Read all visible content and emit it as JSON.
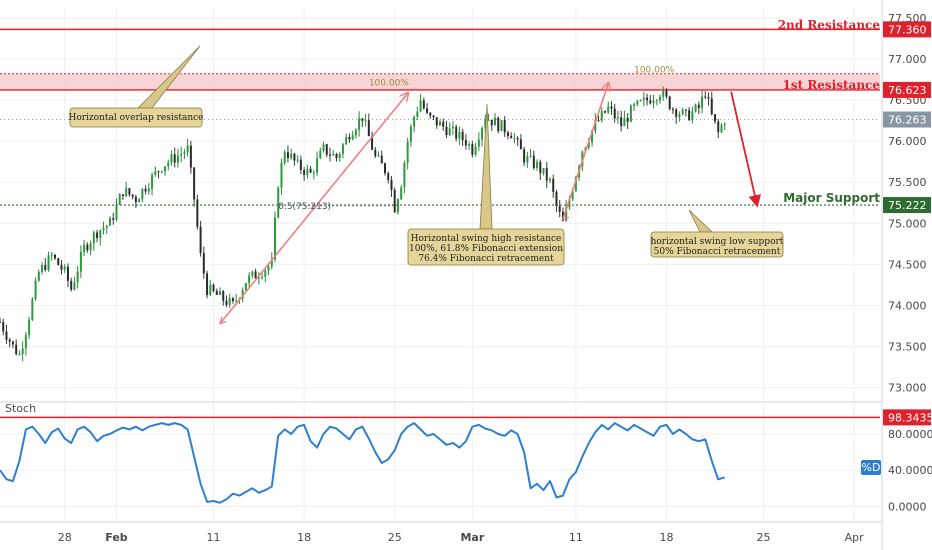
{
  "chart_data": {
    "type": "candlestick",
    "instrument_note": "",
    "price_axis": {
      "ticks": [
        "77.500",
        "77.000",
        "76.500",
        "76.000",
        "75.500",
        "75.000",
        "74.500",
        "74.000",
        "73.500",
        "73.000"
      ],
      "tick_values": [
        77.5,
        77.0,
        76.5,
        76.0,
        75.5,
        75.0,
        74.5,
        74.0,
        73.5,
        73.0
      ],
      "ylim": [
        72.85,
        77.62
      ]
    },
    "time_axis": {
      "labels": [
        "28",
        "Feb",
        "11",
        "18",
        "25",
        "Mar",
        "11",
        "18",
        "25",
        "Apr"
      ],
      "bold_labels": [
        "Feb",
        "Mar"
      ],
      "positions": [
        10,
        18,
        33,
        47,
        61,
        73,
        89,
        103,
        118,
        132
      ],
      "xlim": [
        0,
        136
      ]
    },
    "levels": [
      {
        "name": "2nd Resistance",
        "value": 77.36,
        "tag": "77.360",
        "color": "#e0202a"
      },
      {
        "name": "1st Resistance",
        "value": 76.623,
        "tag": "76.623",
        "color": "#e0202a"
      },
      {
        "name": "Major Support",
        "value": 75.222,
        "tag": "75.222",
        "color": "#2e6b30"
      }
    ],
    "resistance_zone": {
      "low": 76.62,
      "high": 76.82,
      "color": "#f4c7c9"
    },
    "last_price": {
      "value": 76.263,
      "tag": "76.263",
      "color": "#8a96a3"
    },
    "fibonacci": [
      {
        "label": "100.00%",
        "value": 76.64,
        "color": "#a08a3a"
      },
      {
        "label": "100.00%",
        "value": 76.82,
        "color": "#a08a3a"
      },
      {
        "label": "0.5(75.213)",
        "value": 75.213,
        "color": "#4a4a4a"
      }
    ],
    "annotations": [
      {
        "text": [
          "Horizontal overlap resistance"
        ]
      },
      {
        "text": [
          "Horizontal swing high resistance",
          "100%, 61.8% Fibonacci extension",
          "76.4% Fibonacci retracement"
        ]
      },
      {
        "text": [
          "horizontal swing low support",
          "50% Fibonacci retracement"
        ]
      }
    ],
    "price_series": [
      {
        "x": 0,
        "close": 73.8
      },
      {
        "x": 2,
        "close": 73.5
      },
      {
        "x": 3,
        "close": 73.4
      },
      {
        "x": 4,
        "close": 73.7
      },
      {
        "x": 6,
        "close": 74.4
      },
      {
        "x": 8,
        "close": 74.6
      },
      {
        "x": 10,
        "close": 74.4
      },
      {
        "x": 11,
        "close": 74.2
      },
      {
        "x": 13,
        "close": 74.7
      },
      {
        "x": 15,
        "close": 74.9
      },
      {
        "x": 17,
        "close": 75.0
      },
      {
        "x": 19,
        "close": 75.4
      },
      {
        "x": 21,
        "close": 75.3
      },
      {
        "x": 23,
        "close": 75.5
      },
      {
        "x": 25,
        "close": 75.7
      },
      {
        "x": 27,
        "close": 75.8
      },
      {
        "x": 29,
        "close": 75.9
      },
      {
        "x": 30,
        "close": 75.3
      },
      {
        "x": 31,
        "close": 74.6
      },
      {
        "x": 32,
        "close": 74.2
      },
      {
        "x": 34,
        "close": 74.1
      },
      {
        "x": 36,
        "close": 74.0
      },
      {
        "x": 38,
        "close": 74.3
      },
      {
        "x": 40,
        "close": 74.4
      },
      {
        "x": 42,
        "close": 74.5
      },
      {
        "x": 43,
        "close": 75.5
      },
      {
        "x": 44,
        "close": 75.9
      },
      {
        "x": 46,
        "close": 75.7
      },
      {
        "x": 48,
        "close": 75.6
      },
      {
        "x": 50,
        "close": 75.9
      },
      {
        "x": 52,
        "close": 75.8
      },
      {
        "x": 54,
        "close": 76.1
      },
      {
        "x": 56,
        "close": 76.3
      },
      {
        "x": 58,
        "close": 75.8
      },
      {
        "x": 60,
        "close": 75.6
      },
      {
        "x": 61,
        "close": 75.2
      },
      {
        "x": 62,
        "close": 75.5
      },
      {
        "x": 63,
        "close": 76.0
      },
      {
        "x": 64,
        "close": 76.3
      },
      {
        "x": 65,
        "close": 76.5
      },
      {
        "x": 66,
        "close": 76.3
      },
      {
        "x": 68,
        "close": 76.2
      },
      {
        "x": 70,
        "close": 76.1
      },
      {
        "x": 72,
        "close": 76.0
      },
      {
        "x": 73,
        "close": 75.9
      },
      {
        "x": 75,
        "close": 76.3
      },
      {
        "x": 77,
        "close": 76.2
      },
      {
        "x": 79,
        "close": 76.1
      },
      {
        "x": 81,
        "close": 75.8
      },
      {
        "x": 83,
        "close": 75.7
      },
      {
        "x": 85,
        "close": 75.5
      },
      {
        "x": 86,
        "close": 75.2
      },
      {
        "x": 87,
        "close": 75.0
      },
      {
        "x": 88,
        "close": 75.3
      },
      {
        "x": 89,
        "close": 75.6
      },
      {
        "x": 90,
        "close": 75.9
      },
      {
        "x": 92,
        "close": 76.2
      },
      {
        "x": 94,
        "close": 76.4
      },
      {
        "x": 96,
        "close": 76.2
      },
      {
        "x": 98,
        "close": 76.4
      },
      {
        "x": 100,
        "close": 76.5
      },
      {
        "x": 102,
        "close": 76.6
      },
      {
        "x": 104,
        "close": 76.4
      },
      {
        "x": 106,
        "close": 76.3
      },
      {
        "x": 108,
        "close": 76.4
      },
      {
        "x": 109,
        "close": 76.6
      },
      {
        "x": 110,
        "close": 76.3
      },
      {
        "x": 111,
        "close": 76.1
      },
      {
        "x": 112,
        "close": 76.263
      }
    ],
    "projection": [
      {
        "x": 113,
        "value": 76.6
      },
      {
        "x": 117,
        "value": 75.22
      }
    ],
    "fib_swings": [
      {
        "from": {
          "x": 34,
          "value": 73.78
        },
        "to": {
          "x": 63,
          "value": 76.58
        }
      },
      {
        "from": {
          "x": 87,
          "value": 75.05
        },
        "to": {
          "x": 94,
          "value": 76.7
        }
      }
    ],
    "stochastic": {
      "label": "Stoch",
      "badge": "%D",
      "ticks": [
        "80.0000",
        "40.0000",
        "0.0000"
      ],
      "tick_values": [
        80,
        40,
        0
      ],
      "ylim": [
        -15,
        112
      ],
      "overbought": {
        "value": 98.3435,
        "tag": "98.3435",
        "color": "#e0202a"
      },
      "values": [
        {
          "x": 0,
          "v": 40
        },
        {
          "x": 1,
          "v": 30
        },
        {
          "x": 2,
          "v": 28
        },
        {
          "x": 3,
          "v": 50
        },
        {
          "x": 4,
          "v": 85
        },
        {
          "x": 5,
          "v": 88
        },
        {
          "x": 6,
          "v": 80
        },
        {
          "x": 7,
          "v": 70
        },
        {
          "x": 8,
          "v": 82
        },
        {
          "x": 9,
          "v": 86
        },
        {
          "x": 10,
          "v": 75
        },
        {
          "x": 11,
          "v": 70
        },
        {
          "x": 12,
          "v": 85
        },
        {
          "x": 13,
          "v": 88
        },
        {
          "x": 14,
          "v": 82
        },
        {
          "x": 15,
          "v": 72
        },
        {
          "x": 16,
          "v": 78
        },
        {
          "x": 17,
          "v": 80
        },
        {
          "x": 18,
          "v": 84
        },
        {
          "x": 19,
          "v": 87
        },
        {
          "x": 20,
          "v": 85
        },
        {
          "x": 21,
          "v": 88
        },
        {
          "x": 22,
          "v": 84
        },
        {
          "x": 23,
          "v": 88
        },
        {
          "x": 24,
          "v": 90
        },
        {
          "x": 25,
          "v": 92
        },
        {
          "x": 26,
          "v": 90
        },
        {
          "x": 27,
          "v": 92
        },
        {
          "x": 28,
          "v": 90
        },
        {
          "x": 29,
          "v": 85
        },
        {
          "x": 30,
          "v": 55
        },
        {
          "x": 31,
          "v": 25
        },
        {
          "x": 32,
          "v": 5
        },
        {
          "x": 33,
          "v": 6
        },
        {
          "x": 34,
          "v": 4
        },
        {
          "x": 35,
          "v": 8
        },
        {
          "x": 36,
          "v": 14
        },
        {
          "x": 37,
          "v": 12
        },
        {
          "x": 38,
          "v": 16
        },
        {
          "x": 39,
          "v": 20
        },
        {
          "x": 40,
          "v": 15
        },
        {
          "x": 41,
          "v": 18
        },
        {
          "x": 42,
          "v": 22
        },
        {
          "x": 43,
          "v": 78
        },
        {
          "x": 44,
          "v": 85
        },
        {
          "x": 45,
          "v": 80
        },
        {
          "x": 46,
          "v": 88
        },
        {
          "x": 47,
          "v": 90
        },
        {
          "x": 48,
          "v": 72
        },
        {
          "x": 49,
          "v": 65
        },
        {
          "x": 50,
          "v": 80
        },
        {
          "x": 51,
          "v": 88
        },
        {
          "x": 52,
          "v": 86
        },
        {
          "x": 53,
          "v": 80
        },
        {
          "x": 54,
          "v": 74
        },
        {
          "x": 55,
          "v": 85
        },
        {
          "x": 56,
          "v": 88
        },
        {
          "x": 57,
          "v": 75
        },
        {
          "x": 58,
          "v": 60
        },
        {
          "x": 59,
          "v": 48
        },
        {
          "x": 60,
          "v": 52
        },
        {
          "x": 61,
          "v": 62
        },
        {
          "x": 62,
          "v": 80
        },
        {
          "x": 63,
          "v": 88
        },
        {
          "x": 64,
          "v": 92
        },
        {
          "x": 65,
          "v": 85
        },
        {
          "x": 66,
          "v": 78
        },
        {
          "x": 67,
          "v": 80
        },
        {
          "x": 68,
          "v": 74
        },
        {
          "x": 69,
          "v": 68
        },
        {
          "x": 70,
          "v": 70
        },
        {
          "x": 71,
          "v": 65
        },
        {
          "x": 72,
          "v": 72
        },
        {
          "x": 73,
          "v": 88
        },
        {
          "x": 74,
          "v": 90
        },
        {
          "x": 75,
          "v": 86
        },
        {
          "x": 76,
          "v": 84
        },
        {
          "x": 77,
          "v": 80
        },
        {
          "x": 78,
          "v": 78
        },
        {
          "x": 79,
          "v": 84
        },
        {
          "x": 80,
          "v": 80
        },
        {
          "x": 81,
          "v": 60
        },
        {
          "x": 82,
          "v": 20
        },
        {
          "x": 83,
          "v": 25
        },
        {
          "x": 84,
          "v": 18
        },
        {
          "x": 85,
          "v": 28
        },
        {
          "x": 86,
          "v": 10
        },
        {
          "x": 87,
          "v": 12
        },
        {
          "x": 88,
          "v": 30
        },
        {
          "x": 89,
          "v": 38
        },
        {
          "x": 90,
          "v": 55
        },
        {
          "x": 91,
          "v": 70
        },
        {
          "x": 92,
          "v": 82
        },
        {
          "x": 93,
          "v": 90
        },
        {
          "x": 94,
          "v": 85
        },
        {
          "x": 95,
          "v": 92
        },
        {
          "x": 96,
          "v": 88
        },
        {
          "x": 97,
          "v": 84
        },
        {
          "x": 98,
          "v": 90
        },
        {
          "x": 99,
          "v": 86
        },
        {
          "x": 100,
          "v": 82
        },
        {
          "x": 101,
          "v": 78
        },
        {
          "x": 102,
          "v": 88
        },
        {
          "x": 103,
          "v": 90
        },
        {
          "x": 104,
          "v": 80
        },
        {
          "x": 105,
          "v": 85
        },
        {
          "x": 106,
          "v": 80
        },
        {
          "x": 107,
          "v": 74
        },
        {
          "x": 108,
          "v": 72
        },
        {
          "x": 109,
          "v": 74
        },
        {
          "x": 110,
          "v": 50
        },
        {
          "x": 111,
          "v": 30
        },
        {
          "x": 112,
          "v": 32
        }
      ]
    }
  }
}
